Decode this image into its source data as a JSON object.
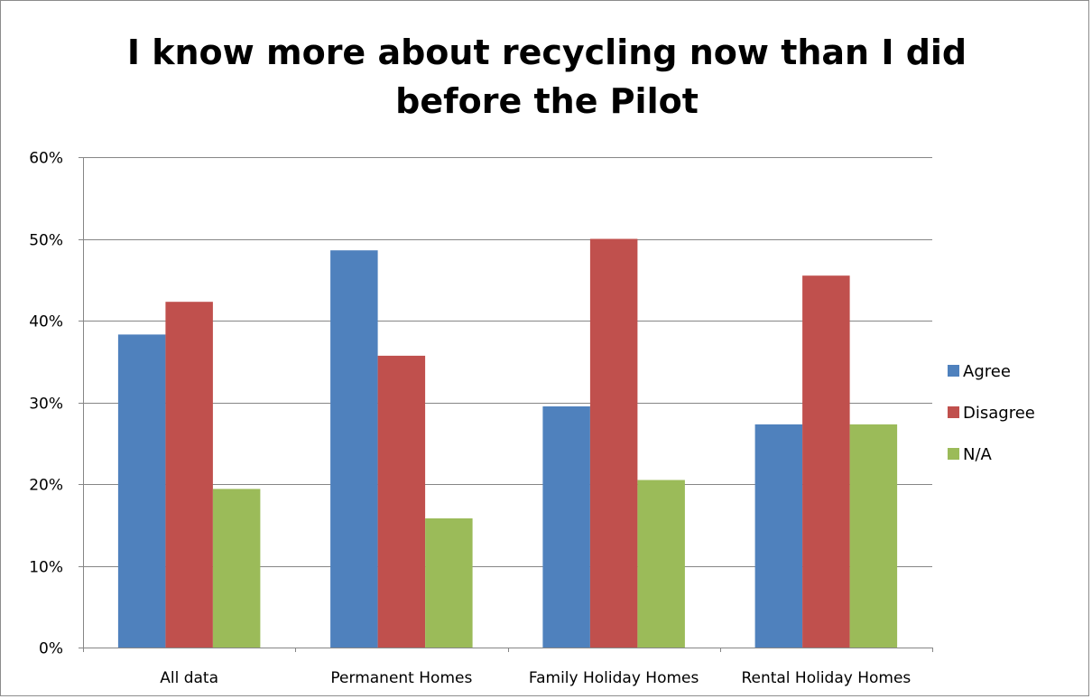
{
  "chart_data": {
    "type": "bar",
    "title": "I know more about recycling now than I did before the Pilot",
    "xlabel": "",
    "ylabel": "",
    "categories": [
      "All data",
      "Permanent Homes",
      "Family Holiday Homes",
      "Rental Holiday Homes"
    ],
    "series": [
      {
        "name": "Agree",
        "color": "#4f81bd",
        "values": [
          0.383,
          0.486,
          0.295,
          0.273
        ]
      },
      {
        "name": "Disagree",
        "color": "#c0504d",
        "values": [
          0.423,
          0.357,
          0.5,
          0.455
        ]
      },
      {
        "name": "N/A",
        "color": "#9bbb59",
        "values": [
          0.194,
          0.158,
          0.205,
          0.273
        ]
      }
    ],
    "ylim": [
      0,
      0.6
    ],
    "yticks": [
      0,
      0.1,
      0.2,
      0.3,
      0.4,
      0.5,
      0.6
    ],
    "ytick_labels": [
      "0%",
      "10%",
      "20%",
      "30%",
      "40%",
      "50%",
      "60%"
    ],
    "grid": true,
    "legend_position": "right"
  }
}
